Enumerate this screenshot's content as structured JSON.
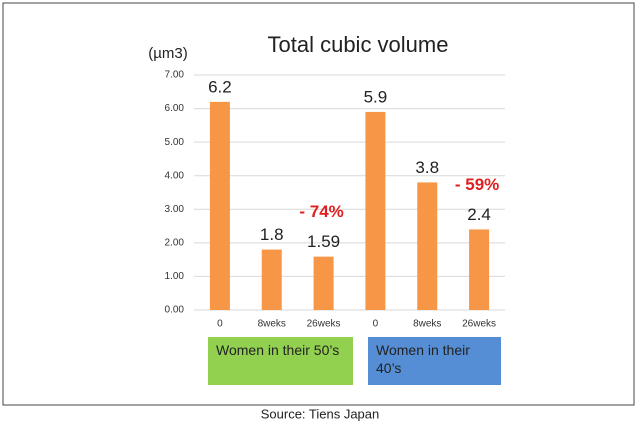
{
  "chart_data": {
    "type": "bar",
    "title": "Total cubic volume",
    "y_unit": "(µm3)",
    "categories": [
      "0",
      "8weks",
      "26weks",
      "0",
      "8weks",
      "26weks"
    ],
    "values": [
      6.2,
      1.8,
      1.59,
      5.9,
      3.8,
      2.4
    ],
    "color": "#f79646",
    "ylim": [
      0,
      7
    ],
    "yticks": [
      {
        "value": 0,
        "label": "0.00"
      },
      {
        "value": 1,
        "label": "1.00"
      },
      {
        "value": 2,
        "label": "2.00"
      },
      {
        "value": 3,
        "label": "3.00"
      },
      {
        "value": 4,
        "label": "4.00"
      },
      {
        "value": 5,
        "label": "5.00"
      },
      {
        "value": 6,
        "label": "6.00"
      },
      {
        "value": 7,
        "label": "7.00"
      }
    ],
    "grid": true,
    "annotations": [
      "- 74%",
      "- 59%"
    ],
    "groups": [
      {
        "label": "Women in their 50’s",
        "color": "#92d050"
      },
      {
        "label": "Women in their 40’s",
        "color": "#558ed5"
      }
    ],
    "source": "Source: Tiens Japan"
  }
}
